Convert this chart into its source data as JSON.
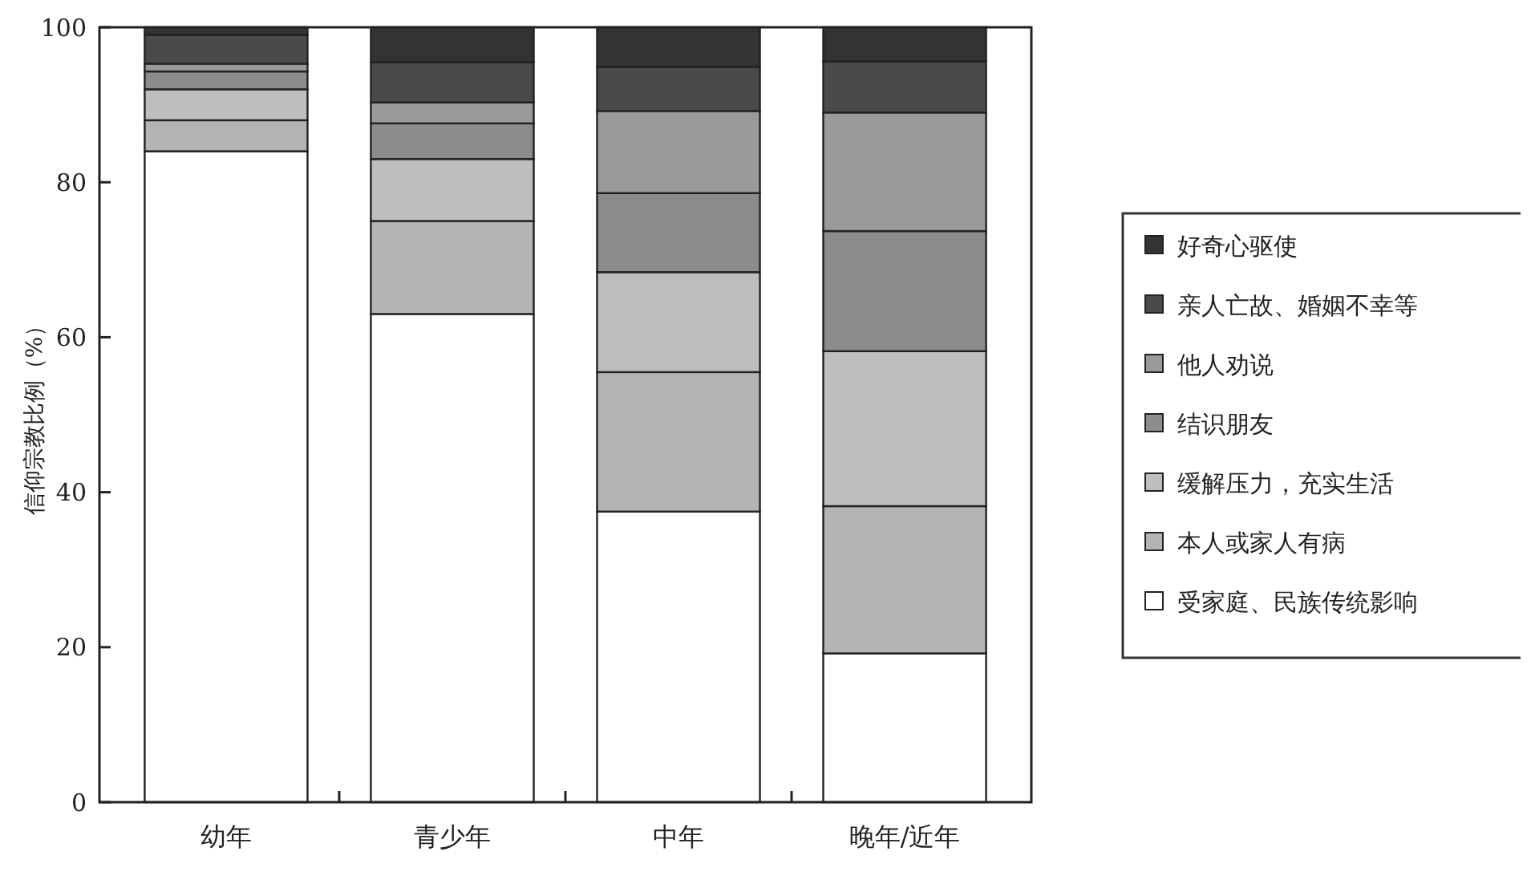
{
  "chart_data": {
    "type": "bar",
    "stacked": true,
    "ylabel": "信仰宗教比例（%）",
    "categories": [
      "幼年",
      "青少年",
      "中年",
      "晚年/近年"
    ],
    "ylim": [
      0,
      100
    ],
    "yticks": [
      0,
      20,
      40,
      60,
      80,
      100
    ],
    "legend": "right",
    "grid": false,
    "series": [
      {
        "name": "受家庭、民族传统影响",
        "color": "#ffffff",
        "values": [
          84,
          63,
          37.5,
          19.2
        ]
      },
      {
        "name": "本人或家人有病",
        "color": "#b4b4b4",
        "values": [
          4,
          12,
          18,
          19
        ]
      },
      {
        "name": "缓解压力，充实生活",
        "color": "#bebebe",
        "values": [
          4,
          8,
          12.9,
          20
        ]
      },
      {
        "name": "结识朋友",
        "color": "#8c8c8c",
        "values": [
          2.3,
          4.6,
          10.2,
          15.5
        ]
      },
      {
        "name": "他人劝说",
        "color": "#9a9a9a",
        "values": [
          1,
          2.7,
          10.6,
          15.3
        ]
      },
      {
        "name": "亲人亡故、婚姻不幸等",
        "color": "#4a4a4a",
        "values": [
          3.7,
          5.2,
          5.7,
          6.6
        ]
      },
      {
        "name": "好奇心驱使",
        "color": "#333333",
        "values": [
          1,
          4.5,
          5.1,
          4.4
        ]
      }
    ]
  }
}
